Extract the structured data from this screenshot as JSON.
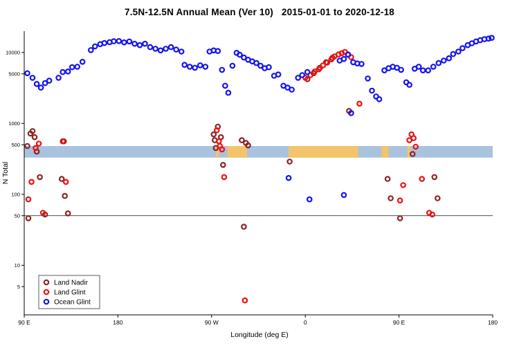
{
  "chart_data": {
    "type": "scatter",
    "title": "7.5N-12.5N Annual Mean (Ver 10)   2015-01-01 to 2020-12-18",
    "xlabel": "Longitude (deg E)",
    "ylabel": "N Total",
    "x_scale": "linear",
    "y_scale": "log",
    "xlim": [
      -270,
      180
    ],
    "ylim": [
      2,
      20000
    ],
    "grid": false,
    "legend_position": "bottom-left",
    "x_ticks": [
      {
        "lon": -270,
        "label": "90 E"
      },
      {
        "lon": -180,
        "label": "180"
      },
      {
        "lon": -90,
        "label": "90 W"
      },
      {
        "lon": 0,
        "label": "0"
      },
      {
        "lon": 90,
        "label": "90 E"
      },
      {
        "lon": 180,
        "label": "180"
      }
    ],
    "y_ticks": [
      {
        "v": 5,
        "label": "5"
      },
      {
        "v": 10,
        "label": "10"
      },
      {
        "v": 50,
        "label": "50"
      },
      {
        "v": 100,
        "label": "100"
      },
      {
        "v": 500,
        "label": "500"
      },
      {
        "v": 1000,
        "label": "1000"
      },
      {
        "v": 5000,
        "label": "5000"
      },
      {
        "v": 10000,
        "label": "10000"
      }
    ],
    "reference_line_y": 50,
    "band": {
      "y_from": 330,
      "y_to": 480,
      "ocean_color": "#a9c2de",
      "land_color": "#f3c46a",
      "land_patches_lon": [
        [
          -86,
          -83
        ],
        [
          -75,
          -56
        ],
        [
          -16,
          51
        ],
        [
          73,
          80
        ],
        [
          98,
          101
        ]
      ]
    },
    "series": [
      {
        "name": "Land Nadir",
        "color": "#8b2525",
        "points": [
          [
            -267,
            480
          ],
          [
            -266,
            46
          ],
          [
            -264,
            720
          ],
          [
            -262,
            780
          ],
          [
            -260,
            640
          ],
          [
            -258,
            400
          ],
          [
            -255,
            175
          ],
          [
            -250,
            52
          ],
          [
            -234,
            165
          ],
          [
            -232,
            560
          ],
          [
            -231,
            95
          ],
          [
            -228,
            54
          ],
          [
            -88,
            700
          ],
          [
            -87,
            580
          ],
          [
            -86,
            450
          ],
          [
            -84,
            900
          ],
          [
            -81,
            640
          ],
          [
            -79,
            260
          ],
          [
            -61,
            580
          ],
          [
            -57,
            530
          ],
          [
            -55,
            490
          ],
          [
            -59,
            35
          ],
          [
            -15,
            290
          ],
          [
            2,
            4200
          ],
          [
            8,
            5100
          ],
          [
            14,
            6100
          ],
          [
            20,
            7300
          ],
          [
            26,
            8400
          ],
          [
            42,
            1500
          ],
          [
            79,
            165
          ],
          [
            82,
            88
          ],
          [
            91,
            46
          ],
          [
            103,
            370
          ],
          [
            124,
            175
          ],
          [
            127,
            88
          ]
        ]
      },
      {
        "name": "Land Glint",
        "color": "#ee1111",
        "points": [
          [
            -266,
            85
          ],
          [
            -263,
            150
          ],
          [
            -259,
            450
          ],
          [
            -256,
            520
          ],
          [
            -252,
            55
          ],
          [
            -233,
            560
          ],
          [
            -230,
            150
          ],
          [
            -85,
            800
          ],
          [
            -83,
            560
          ],
          [
            -82,
            480
          ],
          [
            -80,
            430
          ],
          [
            -78,
            175
          ],
          [
            -58,
            3.2
          ],
          [
            0,
            4400
          ],
          [
            5,
            4800
          ],
          [
            9,
            5400
          ],
          [
            13,
            5800
          ],
          [
            17,
            6600
          ],
          [
            21,
            7200
          ],
          [
            25,
            8000
          ],
          [
            28,
            8800
          ],
          [
            32,
            9400
          ],
          [
            35,
            9800
          ],
          [
            38,
            10200
          ],
          [
            41,
            9400
          ],
          [
            44,
            8600
          ],
          [
            52,
            1900
          ],
          [
            91,
            82
          ],
          [
            94,
            135
          ],
          [
            100,
            580
          ],
          [
            102,
            700
          ],
          [
            104,
            620
          ],
          [
            106,
            470
          ],
          [
            112,
            165
          ],
          [
            119,
            55
          ],
          [
            122,
            52
          ]
        ]
      },
      {
        "name": "Ocean Glint",
        "color": "#1414ee",
        "points": [
          [
            -267,
            5100
          ],
          [
            -262,
            4400
          ],
          [
            -258,
            3600
          ],
          [
            -254,
            3200
          ],
          [
            -250,
            3700
          ],
          [
            -246,
            4000
          ],
          [
            -237,
            4400
          ],
          [
            -233,
            5300
          ],
          [
            -228,
            5400
          ],
          [
            -224,
            6200
          ],
          [
            -219,
            6300
          ],
          [
            -214,
            7400
          ],
          [
            -206,
            10800
          ],
          [
            -202,
            12200
          ],
          [
            -197,
            13100
          ],
          [
            -193,
            13600
          ],
          [
            -188,
            14000
          ],
          [
            -184,
            14400
          ],
          [
            -179,
            14500
          ],
          [
            -174,
            13900
          ],
          [
            -169,
            14300
          ],
          [
            -164,
            13300
          ],
          [
            -159,
            12700
          ],
          [
            -154,
            13300
          ],
          [
            -149,
            11900
          ],
          [
            -144,
            11300
          ],
          [
            -139,
            10700
          ],
          [
            -134,
            11300
          ],
          [
            -129,
            11900
          ],
          [
            -124,
            11000
          ],
          [
            -119,
            10300
          ],
          [
            -116,
            6700
          ],
          [
            -111,
            6300
          ],
          [
            -106,
            6100
          ],
          [
            -101,
            6600
          ],
          [
            -96,
            6300
          ],
          [
            -92,
            10300
          ],
          [
            -88,
            10700
          ],
          [
            -84,
            10500
          ],
          [
            -80,
            5700
          ],
          [
            -77,
            3400
          ],
          [
            -74,
            2700
          ],
          [
            -70,
            6500
          ],
          [
            -66,
            9900
          ],
          [
            -63,
            9300
          ],
          [
            -59,
            8500
          ],
          [
            -55,
            7900
          ],
          [
            -51,
            7500
          ],
          [
            -47,
            7100
          ],
          [
            -43,
            6500
          ],
          [
            -39,
            6000
          ],
          [
            -35,
            6200
          ],
          [
            -30,
            4700
          ],
          [
            -26,
            4900
          ],
          [
            -21,
            3400
          ],
          [
            -17,
            3200
          ],
          [
            -13,
            3000
          ],
          [
            -7,
            4400
          ],
          [
            -3,
            4800
          ],
          [
            2,
            5300
          ],
          [
            33,
            7700
          ],
          [
            37,
            8100
          ],
          [
            41,
            9300
          ],
          [
            46,
            7300
          ],
          [
            50,
            7000
          ],
          [
            54,
            6900
          ],
          [
            60,
            4300
          ],
          [
            64,
            2900
          ],
          [
            68,
            2400
          ],
          [
            71,
            2200
          ],
          [
            76,
            5600
          ],
          [
            80,
            6000
          ],
          [
            84,
            6300
          ],
          [
            88,
            6100
          ],
          [
            92,
            5700
          ],
          [
            97,
            3800
          ],
          [
            100,
            3500
          ],
          [
            105,
            5900
          ],
          [
            109,
            6300
          ],
          [
            113,
            5600
          ],
          [
            118,
            5600
          ],
          [
            123,
            6300
          ],
          [
            128,
            7100
          ],
          [
            133,
            7700
          ],
          [
            138,
            8300
          ],
          [
            142,
            9500
          ],
          [
            147,
            10300
          ],
          [
            151,
            11500
          ],
          [
            156,
            12700
          ],
          [
            160,
            13500
          ],
          [
            164,
            14300
          ],
          [
            168,
            14900
          ],
          [
            172,
            15400
          ],
          [
            176,
            15700
          ],
          [
            179,
            16100
          ],
          [
            -16,
            170
          ],
          [
            4,
            85
          ],
          [
            37,
            98
          ],
          [
            44,
            1400
          ]
        ]
      }
    ]
  }
}
